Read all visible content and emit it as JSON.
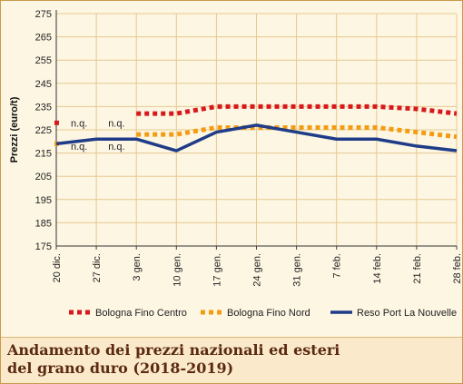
{
  "caption": {
    "line1": "Andamento dei prezzi nazionali ed esteri",
    "line2": "del grano duro (2018-2019)"
  },
  "chart_data": {
    "type": "line",
    "ylabel": "Prezzi (euro/t)",
    "xlabel": "",
    "ylim": [
      175,
      275
    ],
    "yticks": [
      175,
      185,
      195,
      205,
      215,
      225,
      235,
      245,
      255,
      265,
      275
    ],
    "categories": [
      "20 dic.",
      "27 dic.",
      "3 gen.",
      "10 gen.",
      "17 gen.",
      "24 gen.",
      "31 gen.",
      "7 feb.",
      "14 feb.",
      "21 feb.",
      "28 feb."
    ],
    "grid": true,
    "legend_position": "bottom",
    "series": [
      {
        "name": "Bologna Fino Centro",
        "color": "#d7191c",
        "style": "dotted",
        "values": [
          228,
          null,
          232,
          232,
          235,
          235,
          235,
          235,
          235,
          234,
          232
        ]
      },
      {
        "name": "Bologna Fino Nord",
        "color": "#f39c12",
        "style": "dotted",
        "values": [
          219,
          null,
          223,
          223,
          226,
          226,
          226,
          226,
          226,
          224,
          222
        ]
      },
      {
        "name": "Reso Port La Nouvelle",
        "color": "#1f3c88",
        "style": "solid",
        "values": [
          219,
          221,
          221,
          216,
          224,
          227,
          224,
          221,
          221,
          218,
          216
        ]
      }
    ],
    "annotations": [
      {
        "text": "n.q.",
        "category": "20 dic.",
        "y": 228
      },
      {
        "text": "n.q.",
        "category": "3 gen.",
        "y": 228
      },
      {
        "text": "n.q.",
        "category": "20 dic.",
        "y": 218
      },
      {
        "text": "n.q.",
        "category": "3 gen.",
        "y": 218
      }
    ]
  }
}
